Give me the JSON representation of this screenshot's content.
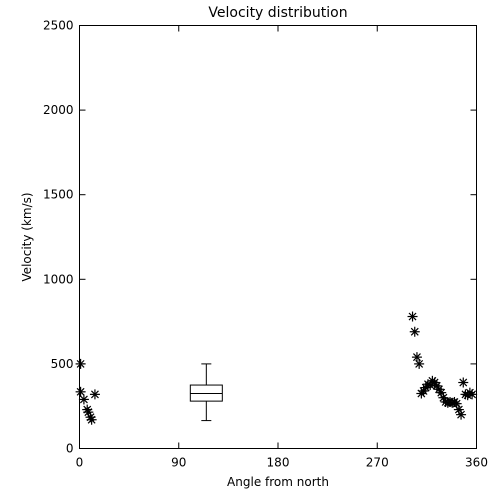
{
  "chart_data": {
    "type": "scatter",
    "title": "Velocity distribution",
    "xlabel": "Angle from north",
    "ylabel": "Velocity (km/s)",
    "xlim": [
      0,
      360
    ],
    "ylim": [
      0,
      2500
    ],
    "xticks": [
      0,
      90,
      180,
      270,
      360
    ],
    "yticks": [
      0,
      500,
      1000,
      1500,
      2000,
      2500
    ],
    "xtick_labels": [
      "0",
      "90",
      "180",
      "270",
      "360"
    ],
    "ytick_labels": [
      "0",
      "500",
      "1000",
      "1500",
      "2000",
      "2500"
    ],
    "grid": false,
    "marker": "asterisk",
    "points": [
      {
        "x": 1,
        "y": 500
      },
      {
        "x": 1,
        "y": 335
      },
      {
        "x": 4,
        "y": 290
      },
      {
        "x": 7,
        "y": 230
      },
      {
        "x": 8,
        "y": 215
      },
      {
        "x": 10,
        "y": 185
      },
      {
        "x": 11,
        "y": 170
      },
      {
        "x": 14,
        "y": 320
      },
      {
        "x": 302,
        "y": 780
      },
      {
        "x": 304,
        "y": 690
      },
      {
        "x": 306,
        "y": 540
      },
      {
        "x": 308,
        "y": 500
      },
      {
        "x": 310,
        "y": 325
      },
      {
        "x": 312,
        "y": 340
      },
      {
        "x": 314,
        "y": 360
      },
      {
        "x": 316,
        "y": 380
      },
      {
        "x": 318,
        "y": 375
      },
      {
        "x": 320,
        "y": 400
      },
      {
        "x": 322,
        "y": 390
      },
      {
        "x": 324,
        "y": 370
      },
      {
        "x": 326,
        "y": 350
      },
      {
        "x": 328,
        "y": 330
      },
      {
        "x": 330,
        "y": 300
      },
      {
        "x": 332,
        "y": 275
      },
      {
        "x": 334,
        "y": 270
      },
      {
        "x": 336,
        "y": 275
      },
      {
        "x": 338,
        "y": 270
      },
      {
        "x": 340,
        "y": 275
      },
      {
        "x": 342,
        "y": 265
      },
      {
        "x": 344,
        "y": 230
      },
      {
        "x": 346,
        "y": 200
      },
      {
        "x": 348,
        "y": 390
      },
      {
        "x": 350,
        "y": 320
      },
      {
        "x": 352,
        "y": 315
      },
      {
        "x": 354,
        "y": 330
      },
      {
        "x": 356,
        "y": 320
      }
    ],
    "boxplot": {
      "x": 115,
      "whisker_low": 165,
      "q1": 280,
      "median": 325,
      "q3": 375,
      "whisker_high": 500
    }
  }
}
